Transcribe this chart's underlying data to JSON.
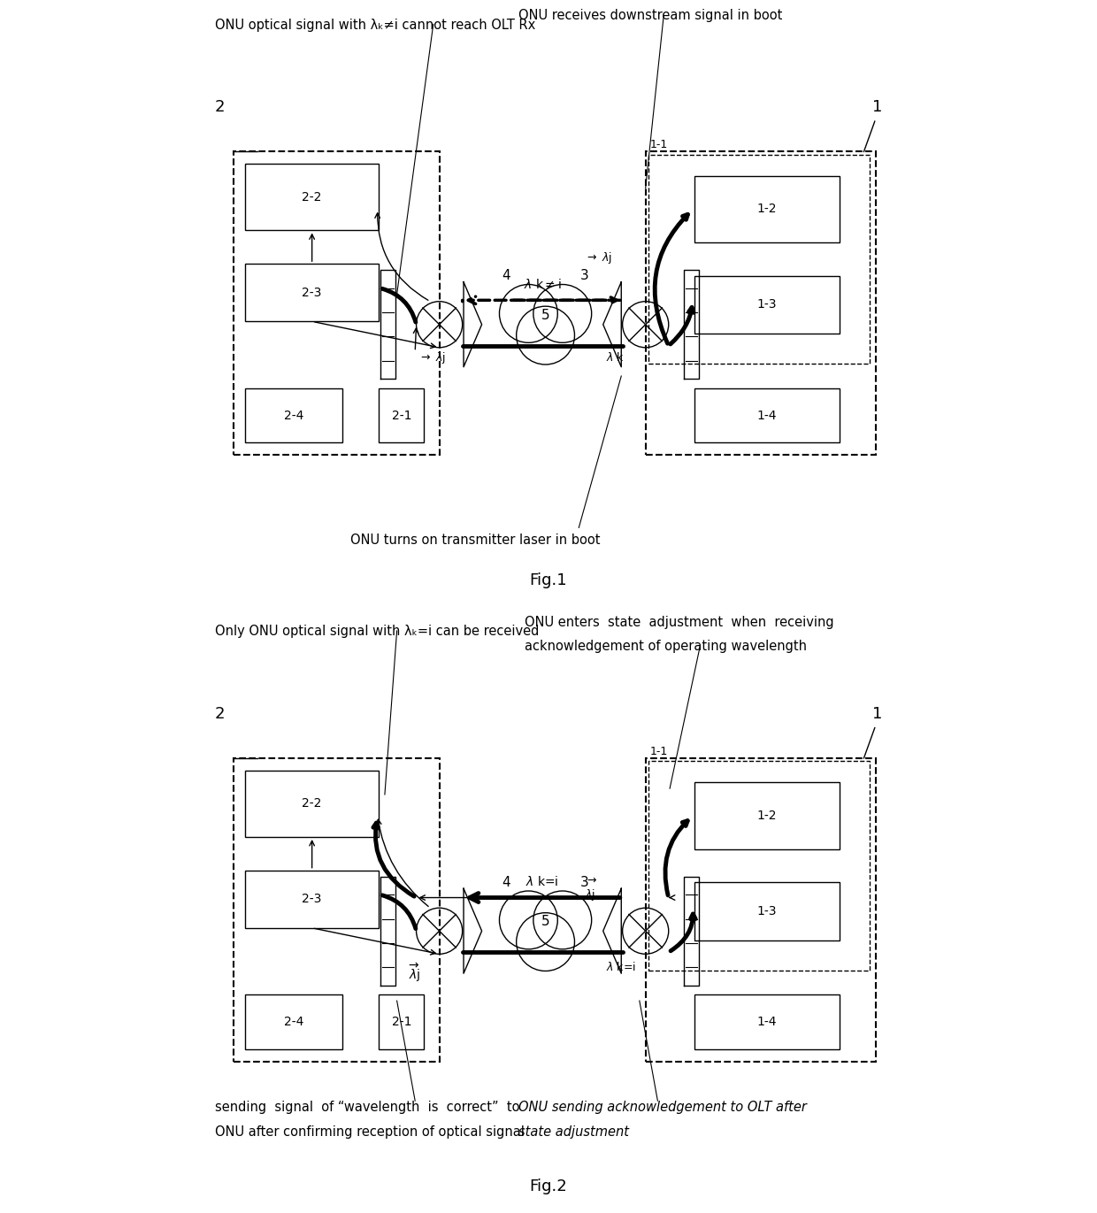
{
  "fig_width": 12.4,
  "fig_height": 13.71,
  "bg_color": "#ffffff",
  "fig1_annotations": {
    "top_left": "ONU optical signal with λₖ≠i cannot reach OLT Rx",
    "top_right": "ONU receives downstream signal in boot",
    "bottom_center": "ONU turns on transmitter laser in boot"
  },
  "fig2_annotations": {
    "top_left": "Only ONU optical signal with λₖ=i can be received",
    "top_right_line1": "ONU enters  state  adjustment  when  receiving",
    "top_right_line2": "acknowledgement of operating wavelength",
    "bottom_left_line1": "sending  signal  of “wavelength  is  correct”  to",
    "bottom_left_line2": "ONU after confirming reception of optical signal",
    "bottom_right_line1": "ONU sending acknowledgement to OLT after",
    "bottom_right_line2": "state adjustment"
  }
}
